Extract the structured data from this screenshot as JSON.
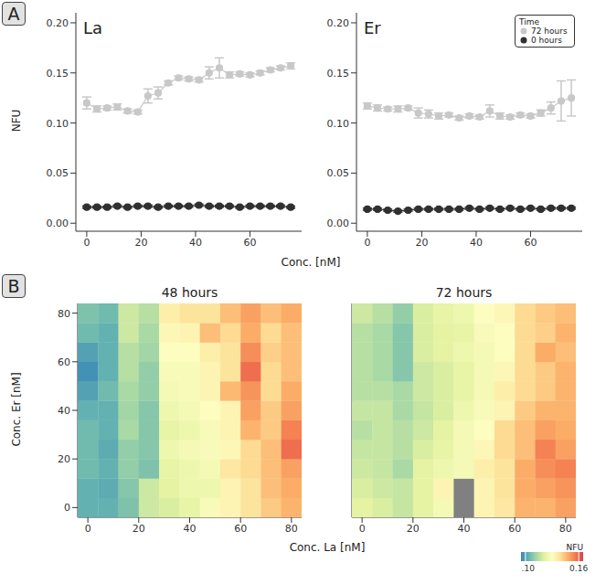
{
  "chart_data": [
    {
      "type": "line",
      "annotation": "A",
      "title": "La",
      "y_label": "NFU",
      "x_label": "Conc. [nM]",
      "marker": "circle",
      "grid": false,
      "x": [
        0,
        3.75,
        7.5,
        11.25,
        15,
        18.75,
        22.5,
        26.25,
        30,
        33.75,
        37.5,
        41.25,
        45,
        48.75,
        52.5,
        56.25,
        60,
        63.75,
        67.5,
        71.25,
        75
      ],
      "series": [
        {
          "name": "72 hours",
          "color": "#c8c8c8",
          "values": [
            0.12,
            0.114,
            0.115,
            0.116,
            0.112,
            0.111,
            0.127,
            0.13,
            0.14,
            0.145,
            0.144,
            0.143,
            0.15,
            0.155,
            0.148,
            0.149,
            0.148,
            0.15,
            0.153,
            0.155,
            0.157
          ],
          "errors": [
            0.006,
            0.003,
            0.002,
            0.003,
            0.002,
            0.002,
            0.007,
            0.006,
            0.002,
            0.002,
            0.002,
            0.002,
            0.006,
            0.01,
            0.003,
            0.002,
            0.002,
            0.002,
            0.002,
            0.002,
            0.003
          ]
        },
        {
          "name": "0 hours",
          "color": "#303030",
          "values": [
            0.016,
            0.016,
            0.016,
            0.017,
            0.016,
            0.017,
            0.017,
            0.016,
            0.017,
            0.017,
            0.017,
            0.018,
            0.017,
            0.017,
            0.017,
            0.016,
            0.017,
            0.017,
            0.017,
            0.017,
            0.016
          ],
          "errors": [
            0.001,
            0.001,
            0.001,
            0.001,
            0.001,
            0.001,
            0.001,
            0.001,
            0.001,
            0.001,
            0.001,
            0.001,
            0.001,
            0.001,
            0.001,
            0.001,
            0.001,
            0.001,
            0.001,
            0.001,
            0.001
          ]
        }
      ],
      "xlim": [
        -4,
        79
      ],
      "xticks": [
        0,
        20,
        40,
        60
      ],
      "ylim": [
        -0.008,
        0.21
      ],
      "yticks": [
        {
          "value": 0,
          "label": "0.00"
        },
        0.05,
        {
          "value": 0.1,
          "label": "0.10"
        },
        0.15,
        {
          "value": 0.2,
          "label": "0.20"
        }
      ]
    },
    {
      "type": "line",
      "title": "Er",
      "marker": "circle",
      "grid": false,
      "legend": "top-right",
      "legend_title": "Time",
      "x": [
        0,
        3.75,
        7.5,
        11.25,
        15,
        18.75,
        22.5,
        26.25,
        30,
        33.75,
        37.5,
        41.25,
        45,
        48.75,
        52.5,
        56.25,
        60,
        63.75,
        67.5,
        71.25,
        75
      ],
      "series": [
        {
          "name": "72 hours",
          "color": "#c8c8c8",
          "values": [
            0.117,
            0.115,
            0.114,
            0.114,
            0.115,
            0.11,
            0.109,
            0.107,
            0.108,
            0.105,
            0.107,
            0.106,
            0.112,
            0.107,
            0.106,
            0.108,
            0.107,
            0.11,
            0.115,
            0.122,
            0.125
          ],
          "errors": [
            0.003,
            0.003,
            0.002,
            0.003,
            0.002,
            0.005,
            0.004,
            0.003,
            0.002,
            0.002,
            0.002,
            0.002,
            0.006,
            0.003,
            0.002,
            0.002,
            0.002,
            0.003,
            0.006,
            0.02,
            0.018
          ]
        },
        {
          "name": "0 hours",
          "color": "#303030",
          "values": [
            0.014,
            0.014,
            0.013,
            0.012,
            0.013,
            0.014,
            0.014,
            0.014,
            0.014,
            0.014,
            0.015,
            0.014,
            0.015,
            0.014,
            0.015,
            0.014,
            0.015,
            0.014,
            0.015,
            0.015,
            0.015
          ],
          "errors": [
            0.001,
            0.001,
            0.001,
            0.001,
            0.001,
            0.001,
            0.001,
            0.001,
            0.001,
            0.001,
            0.001,
            0.001,
            0.001,
            0.001,
            0.001,
            0.001,
            0.001,
            0.001,
            0.001,
            0.001,
            0.001
          ]
        }
      ],
      "xlim": [
        -4,
        79
      ],
      "xticks": [
        0,
        20,
        40,
        60
      ],
      "ylim": [
        -0.008,
        0.21
      ],
      "yticks": [
        {
          "value": 0,
          "label": "0.00"
        },
        0.05,
        {
          "value": 0.1,
          "label": "0.10"
        },
        0.15,
        {
          "value": 0.2,
          "label": "0.20"
        }
      ]
    },
    {
      "type": "heatmap",
      "annotation": "B",
      "title": "48 hours",
      "x_label": "Conc. La [nM]",
      "y_label": "Conc. Er [nM]",
      "x": [
        0,
        8,
        16,
        24,
        32,
        40,
        48,
        56,
        64,
        72,
        80
      ],
      "y": [
        0,
        8,
        16,
        24,
        32,
        40,
        48,
        56,
        64,
        72,
        80
      ],
      "values": [
        [
          0.103,
          0.103,
          0.107,
          0.118,
          0.12,
          0.123,
          0.128,
          0.133,
          0.138,
          0.143,
          0.147
        ],
        [
          0.103,
          0.102,
          0.108,
          0.118,
          0.122,
          0.125,
          0.125,
          0.133,
          0.138,
          0.145,
          0.148
        ],
        [
          0.105,
          0.103,
          0.11,
          0.107,
          0.123,
          0.125,
          0.127,
          0.137,
          0.14,
          0.145,
          0.15
        ],
        [
          0.105,
          0.102,
          0.11,
          0.108,
          0.125,
          0.127,
          0.128,
          0.132,
          0.14,
          0.145,
          0.158
        ],
        [
          0.105,
          0.103,
          0.113,
          0.108,
          0.123,
          0.125,
          0.128,
          0.133,
          0.147,
          0.143,
          0.155
        ],
        [
          0.103,
          0.103,
          0.112,
          0.108,
          0.125,
          0.127,
          0.13,
          0.133,
          0.15,
          0.143,
          0.15
        ],
        [
          0.1,
          0.105,
          0.113,
          0.11,
          0.127,
          0.128,
          0.133,
          0.146,
          0.152,
          0.14,
          0.148
        ],
        [
          0.097,
          0.103,
          0.115,
          0.11,
          0.128,
          0.128,
          0.133,
          0.138,
          0.158,
          0.14,
          0.145
        ],
        [
          0.1,
          0.103,
          0.115,
          0.112,
          0.13,
          0.13,
          0.135,
          0.138,
          0.153,
          0.142,
          0.145
        ],
        [
          0.105,
          0.103,
          0.118,
          0.113,
          0.132,
          0.133,
          0.145,
          0.14,
          0.148,
          0.14,
          0.145
        ],
        [
          0.107,
          0.105,
          0.118,
          0.115,
          0.135,
          0.138,
          0.138,
          0.145,
          0.15,
          0.145,
          0.148
        ]
      ],
      "xlim": [
        -4,
        84
      ],
      "xticks": [
        0,
        20,
        40,
        60,
        80
      ],
      "ylim": [
        -4,
        84
      ],
      "yticks": [
        0,
        20,
        40,
        60,
        80
      ]
    },
    {
      "type": "heatmap",
      "title": "72 hours",
      "tick_labels": "x",
      "x": [
        0,
        8,
        16,
        24,
        32,
        40,
        48,
        56,
        64,
        72,
        80
      ],
      "y": [
        0,
        8,
        16,
        24,
        32,
        40,
        48,
        56,
        64,
        72,
        80
      ],
      "values": [
        [
          0.122,
          0.12,
          0.117,
          0.122,
          0.127,
          null,
          0.133,
          0.137,
          0.147,
          0.147,
          0.15
        ],
        [
          0.12,
          0.118,
          0.117,
          0.122,
          0.133,
          null,
          0.133,
          0.138,
          0.148,
          0.15,
          0.152
        ],
        [
          0.118,
          0.117,
          0.113,
          0.122,
          0.125,
          0.127,
          0.135,
          0.138,
          0.148,
          0.153,
          0.155
        ],
        [
          0.117,
          0.117,
          0.115,
          0.12,
          0.123,
          0.127,
          0.132,
          0.14,
          0.145,
          0.155,
          0.15
        ],
        [
          0.115,
          0.117,
          0.115,
          0.118,
          0.122,
          0.127,
          0.13,
          0.14,
          0.145,
          0.15,
          0.148
        ],
        [
          0.117,
          0.117,
          0.113,
          0.117,
          0.12,
          0.125,
          0.128,
          0.133,
          0.143,
          0.147,
          0.147
        ],
        [
          0.115,
          0.115,
          0.113,
          0.118,
          0.12,
          0.123,
          0.127,
          0.135,
          0.14,
          0.143,
          0.147
        ],
        [
          0.115,
          0.113,
          0.108,
          0.118,
          0.12,
          0.123,
          0.127,
          0.132,
          0.14,
          0.143,
          0.147
        ],
        [
          0.115,
          0.113,
          0.108,
          0.12,
          0.122,
          0.125,
          0.127,
          0.13,
          0.14,
          0.148,
          0.145
        ],
        [
          0.115,
          0.113,
          0.108,
          0.12,
          0.122,
          0.123,
          0.128,
          0.13,
          0.14,
          0.142,
          0.147
        ],
        [
          0.118,
          0.115,
          0.11,
          0.12,
          0.123,
          0.125,
          0.13,
          0.132,
          0.14,
          0.143,
          0.145
        ]
      ],
      "xlim": [
        -4,
        84
      ],
      "xticks": [
        0,
        20,
        40,
        60,
        80
      ],
      "ylim": [
        -4,
        84
      ],
      "yticks": [
        0,
        20,
        40,
        60,
        80
      ],
      "colorbar": {
        "label": "NFU",
        "range": [
          0.095,
          0.165
        ],
        "ticks": [
          {
            "value": 0.1,
            "label": "0.10"
          },
          0.16
        ]
      }
    }
  ]
}
